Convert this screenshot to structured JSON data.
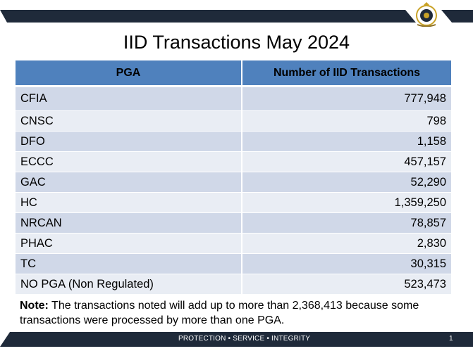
{
  "slide": {
    "title": "IID Transactions May 2024",
    "footer": "PROTECTION • SERVICE • INTEGRITY",
    "page_number": "1"
  },
  "table": {
    "headers": [
      "PGA",
      "Number of IID Transactions"
    ],
    "rows": [
      {
        "pga": "CFIA",
        "count": "777,948"
      },
      {
        "pga": "CNSC",
        "count": "798"
      },
      {
        "pga": "DFO",
        "count": "1,158"
      },
      {
        "pga": "ECCC",
        "count": "457,157"
      },
      {
        "pga": "GAC",
        "count": "52,290"
      },
      {
        "pga": "HC",
        "count": "1,359,250"
      },
      {
        "pga": "NRCAN",
        "count": "78,857"
      },
      {
        "pga": "PHAC",
        "count": "2,830"
      },
      {
        "pga": "TC",
        "count": "30,315"
      },
      {
        "pga": "NO PGA (Non Regulated)",
        "count": "523,473"
      }
    ]
  },
  "note": {
    "label": "Note:",
    "text": " The transactions noted will add up to more than 2,368,413 because some transactions were processed by more than one PGA."
  },
  "colors": {
    "header": "#4f81bd",
    "row_odd": "#d0d8e8",
    "row_even": "#e9edf4",
    "bar": "#1f2a3a"
  }
}
